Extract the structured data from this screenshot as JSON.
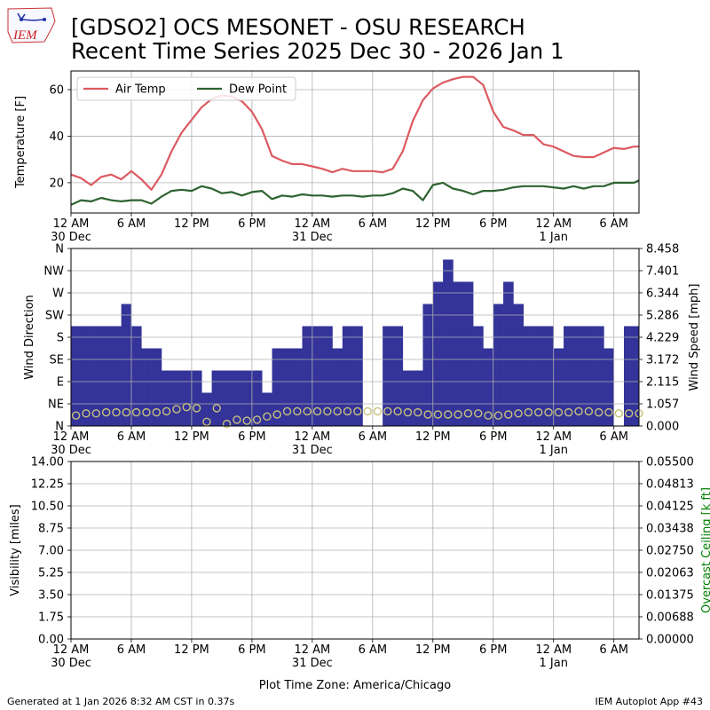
{
  "header": {
    "title_line1": "[GDSO2] OCS MESONET - OSU RESEARCH",
    "title_line2": "Recent Time Series 2025 Dec 30 - 2026 Jan 1",
    "logo_text": "IEM"
  },
  "footer": {
    "generated": "Generated at 1 Jan 2026 8:32 AM CST in 0.37s",
    "app": "IEM Autoplot App #43"
  },
  "colors": {
    "air_temp": "#dc5a61",
    "dew_point": "#2e6331",
    "wind_bar": "#333399",
    "wind_speed": "#c8c27a",
    "ceiling_label": "#008000",
    "grid": "#b0b0b0"
  },
  "x_axis": {
    "tick_hours": [
      0,
      6,
      12,
      18,
      24,
      30,
      36,
      42,
      48,
      54
    ],
    "tick_labels": [
      "12 AM",
      "6 AM",
      "12 PM",
      "6 PM",
      "12 AM",
      "6 AM",
      "12 PM",
      "6 PM",
      "12 AM",
      "6 AM"
    ],
    "date_labels": [
      {
        "hour": 0,
        "text": "30 Dec"
      },
      {
        "hour": 24,
        "text": "31 Dec"
      },
      {
        "hour": 48,
        "text": "1 Jan"
      }
    ],
    "timezone_label": "Plot Time Zone: America/Chicago",
    "range_hours": [
      0,
      56.5
    ]
  },
  "chart_data": [
    {
      "type": "line",
      "x_unit": "hours since 12 AM 30 Dec (America/Chicago)",
      "ylabel": "Temperature [F]",
      "ylim": [
        7,
        68
      ],
      "yticks": [
        20,
        40,
        60
      ],
      "legend_position": "upper-left",
      "series": [
        {
          "name": "Air Temp",
          "x": [
            0,
            1,
            2,
            3,
            4,
            5,
            6,
            7,
            8,
            9,
            10,
            11,
            12,
            13,
            14,
            15,
            16,
            17,
            18,
            19,
            20,
            21,
            22,
            23,
            24,
            25,
            26,
            27,
            28,
            29,
            30,
            31,
            32,
            33,
            34,
            35,
            36,
            37,
            38,
            39,
            40,
            41,
            42,
            43,
            44,
            45,
            46,
            47,
            48,
            49,
            50,
            51,
            52,
            53,
            54,
            55,
            56,
            56.5
          ],
          "values": [
            23.5,
            22,
            19,
            22.5,
            23.5,
            21.5,
            25,
            21.5,
            17,
            23.5,
            33.5,
            41.5,
            47,
            52.5,
            56,
            57.5,
            57,
            55,
            50.5,
            43,
            31.5,
            29.5,
            28,
            28,
            27,
            26,
            24.5,
            26,
            25,
            25,
            25,
            24.5,
            26,
            33.5,
            46.5,
            55.5,
            60.5,
            63,
            64.5,
            65.5,
            65.5,
            62,
            50.5,
            44,
            42.5,
            40.5,
            40.5,
            36.5,
            35.5,
            33.5,
            31.5,
            31,
            31,
            33,
            35,
            34.5,
            35.5,
            35.5
          ]
        },
        {
          "name": "Dew Point",
          "x": [
            0,
            1,
            2,
            3,
            4,
            5,
            6,
            7,
            8,
            9,
            10,
            11,
            12,
            13,
            14,
            15,
            16,
            17,
            18,
            19,
            20,
            21,
            22,
            23,
            24,
            25,
            26,
            27,
            28,
            29,
            30,
            31,
            32,
            33,
            34,
            35,
            36,
            37,
            38,
            39,
            40,
            41,
            42,
            43,
            44,
            45,
            46,
            47,
            48,
            49,
            50,
            51,
            52,
            53,
            54,
            55,
            56,
            56.5
          ],
          "values": [
            10.5,
            12.5,
            12,
            13.5,
            12.5,
            12,
            12.5,
            12.5,
            11,
            14,
            16.5,
            17,
            16.5,
            18.5,
            17.5,
            15.5,
            16,
            14.5,
            16,
            16.5,
            13,
            14.5,
            14,
            15,
            14.5,
            14.5,
            14,
            14.5,
            14.5,
            14,
            14.5,
            14.5,
            15.5,
            17.5,
            16.5,
            12.5,
            19,
            20,
            17.5,
            16.5,
            15,
            16.5,
            16.5,
            17,
            18,
            18.5,
            18.5,
            18.5,
            18,
            17.5,
            18.5,
            17.5,
            18.5,
            18.5,
            20,
            20,
            20,
            21
          ]
        }
      ]
    },
    {
      "type": "bar",
      "x_unit": "hours since 12 AM 30 Dec (America/Chicago)",
      "ylabel": "Wind Direction",
      "y2label": "Wind Speed [mph]",
      "ylim": [
        0,
        360
      ],
      "yticks": [
        0,
        45,
        90,
        135,
        180,
        225,
        270,
        315,
        360
      ],
      "ytick_labels": [
        "N",
        "NE",
        "E",
        "SE",
        "S",
        "SW",
        "W",
        "NW",
        "N"
      ],
      "y2lim": [
        0,
        8.458
      ],
      "y2ticks": [
        0.0,
        1.057,
        2.115,
        3.172,
        4.229,
        5.286,
        6.344,
        7.401,
        8.458
      ],
      "bar_hours": [
        0.5,
        1.5,
        2.5,
        3.5,
        4.5,
        5.5,
        6.5,
        7.5,
        8.5,
        9.5,
        10.5,
        11.5,
        12.5,
        13.5,
        14.5,
        15.5,
        16.5,
        17.5,
        18.5,
        19.5,
        20.5,
        21.5,
        22.5,
        23.5,
        24.5,
        25.5,
        26.5,
        27.5,
        28.5,
        29.5,
        30.5,
        31.5,
        32.5,
        33.5,
        34.5,
        35.5,
        36.5,
        37.5,
        38.5,
        39.5,
        40.5,
        41.5,
        42.5,
        43.5,
        44.5,
        45.5,
        46.5,
        47.5,
        48.5,
        49.5,
        50.5,
        51.5,
        52.5,
        53.5,
        54.5,
        55.5,
        56.5
      ],
      "direction_deg": [
        202.5,
        202.5,
        202.5,
        202.5,
        202.5,
        247.5,
        202.5,
        157.5,
        157.5,
        112.5,
        112.5,
        112.5,
        112.5,
        67.5,
        112.5,
        112.5,
        112.5,
        112.5,
        112.5,
        67.5,
        157.5,
        157.5,
        157.5,
        202.5,
        202.5,
        202.5,
        157.5,
        202.5,
        202.5,
        null,
        null,
        202.5,
        202.5,
        112.5,
        112.5,
        247.5,
        292.5,
        337.5,
        292.5,
        292.5,
        202.5,
        157.5,
        247.5,
        292.5,
        247.5,
        202.5,
        202.5,
        202.5,
        157.5,
        202.5,
        202.5,
        202.5,
        202.5,
        157.5,
        null,
        202.5,
        202.5
      ],
      "speed_mph": [
        0.5,
        0.6,
        0.6,
        0.65,
        0.65,
        0.65,
        0.65,
        0.65,
        0.65,
        0.7,
        0.8,
        0.9,
        0.85,
        0.2,
        0.85,
        0.1,
        0.3,
        0.25,
        0.3,
        0.45,
        0.55,
        0.7,
        0.7,
        0.7,
        0.7,
        0.7,
        0.7,
        0.7,
        0.7,
        0.7,
        0.7,
        0.7,
        0.7,
        0.65,
        0.65,
        0.55,
        0.55,
        0.55,
        0.55,
        0.6,
        0.6,
        0.5,
        0.5,
        0.55,
        0.6,
        0.65,
        0.65,
        0.65,
        0.65,
        0.65,
        0.7,
        0.7,
        0.65,
        0.65,
        0.6,
        0.6,
        0.6
      ]
    },
    {
      "type": "line",
      "x_unit": "hours since 12 AM 30 Dec (America/Chicago)",
      "ylabel": "Visibility [miles]",
      "y2label": "Overcast Ceiling [k ft]",
      "ylim": [
        0,
        14
      ],
      "yticks": [
        0.0,
        1.75,
        3.5,
        5.25,
        7.0,
        8.75,
        10.5,
        12.25,
        14.0
      ],
      "y2lim": [
        0,
        0.055
      ],
      "y2ticks": [
        0.0,
        0.00688,
        0.01375,
        0.02063,
        0.0275,
        0.03438,
        0.04125,
        0.04813,
        0.055
      ],
      "series": []
    }
  ]
}
